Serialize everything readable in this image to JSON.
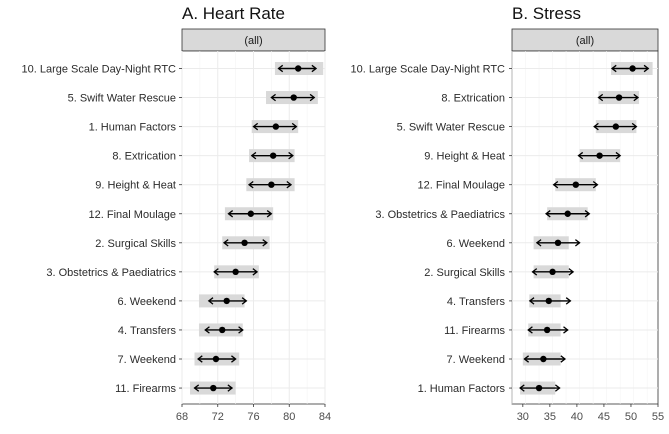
{
  "chart_data": [
    {
      "type": "forest-interval",
      "title": "A. Heart Rate",
      "facet_label": "(all)",
      "xlim": [
        68,
        84
      ],
      "x_ticks": [
        68,
        72,
        76,
        80,
        84
      ],
      "grid": true,
      "categories": [
        "10. Large Scale Day-Night RTC",
        "5. Swift Water Rescue",
        "1. Human Factors",
        "8. Extrication",
        "9. Height & Heat",
        "12. Final Moulage",
        "2. Surgical Skills",
        "3. Obstetrics & Paediatrics",
        "6. Weekend",
        "4. Transfers",
        "7. Weekend",
        "11. Firearms"
      ],
      "point": [
        81.0,
        80.5,
        78.5,
        78.2,
        78.0,
        75.7,
        75.0,
        74.0,
        73.0,
        72.5,
        71.8,
        71.5
      ],
      "ci_low": [
        78.8,
        78.0,
        76.0,
        75.8,
        75.5,
        73.2,
        72.7,
        71.6,
        71.0,
        70.6,
        69.8,
        69.4
      ],
      "ci_high": [
        83.0,
        82.8,
        80.8,
        80.4,
        80.2,
        78.0,
        77.5,
        76.4,
        75.2,
        74.8,
        74.0,
        73.6
      ],
      "band_low": [
        78.4,
        77.4,
        75.8,
        75.5,
        75.2,
        72.8,
        72.5,
        71.6,
        69.9,
        69.9,
        69.4,
        68.9
      ],
      "band_high": [
        83.8,
        83.2,
        81.0,
        80.6,
        80.6,
        78.2,
        77.8,
        76.6,
        75.0,
        74.8,
        74.4,
        74.0
      ]
    },
    {
      "type": "forest-interval",
      "title": "B. Stress",
      "facet_label": "(all)",
      "xlim": [
        28,
        55
      ],
      "x_ticks": [
        30,
        35,
        40,
        45,
        50,
        55
      ],
      "grid": true,
      "categories": [
        "10. Large Scale Day-Night RTC",
        "8. Extrication",
        "5. Swift Water Rescue",
        "9. Height & Heat",
        "12. Final Moulage",
        "3. Obstetrics & Paediatrics",
        "6. Weekend",
        "2. Surgical Skills",
        "4. Transfers",
        "11. Firearms",
        "7. Weekend",
        "1. Human Factors"
      ],
      "point": [
        50.3,
        47.8,
        47.2,
        44.2,
        39.8,
        38.3,
        36.5,
        35.5,
        34.8,
        34.5,
        33.8,
        33.0
      ],
      "ci_low": [
        46.5,
        44.0,
        43.2,
        40.3,
        35.7,
        34.3,
        32.6,
        31.8,
        31.3,
        31.0,
        30.3,
        29.5
      ],
      "ci_high": [
        53.2,
        51.3,
        51.0,
        48.0,
        43.8,
        42.3,
        40.5,
        39.3,
        38.8,
        38.3,
        37.8,
        36.8
      ],
      "band_low": [
        46.3,
        44.0,
        43.5,
        40.5,
        36.0,
        34.5,
        32.0,
        32.0,
        31.2,
        31.0,
        30.0,
        29.5
      ],
      "band_high": [
        54.0,
        51.5,
        51.0,
        48.0,
        43.5,
        42.0,
        38.5,
        38.5,
        37.0,
        37.0,
        37.0,
        36.0
      ]
    }
  ]
}
